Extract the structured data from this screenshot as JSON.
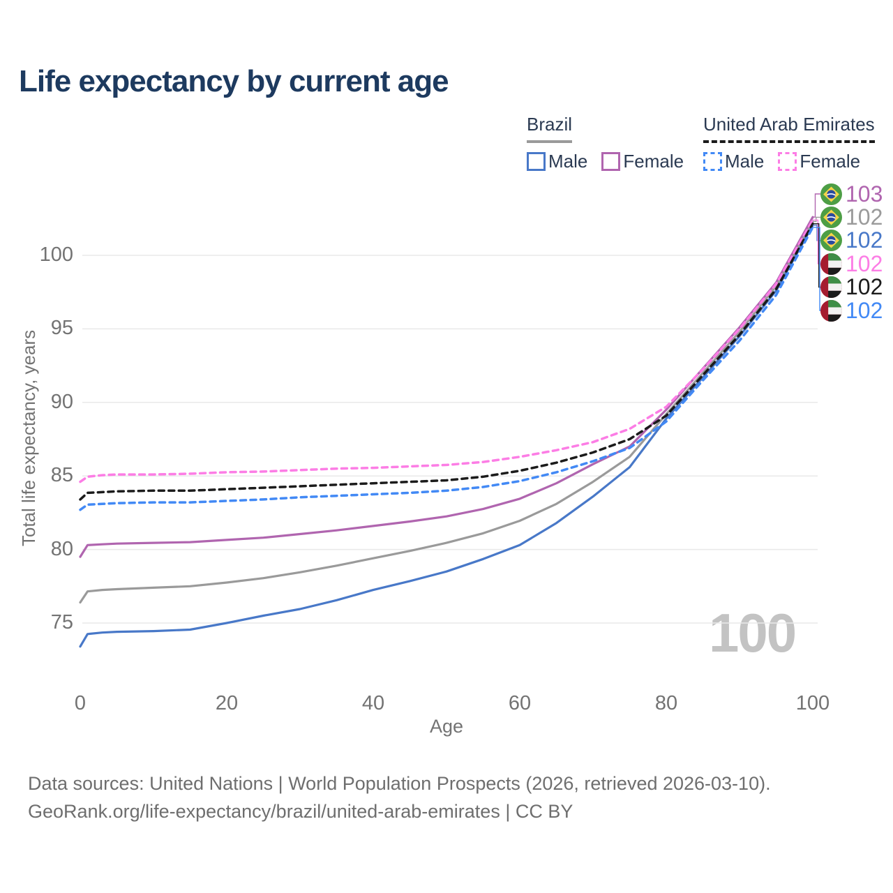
{
  "title": "Life expectancy by current age",
  "watermark": "100",
  "legend": {
    "brazil": {
      "label": "Brazil",
      "underline_color": "#9a9a9a",
      "underline_style": "solid",
      "items": [
        {
          "label": "Male",
          "color": "#4878c8",
          "style": "solid"
        },
        {
          "label": "Female",
          "color": "#b065af",
          "style": "solid"
        }
      ]
    },
    "uae": {
      "label": "United Arab Emirates",
      "underline_color": "#1b1b1b",
      "underline_style": "dashed",
      "items": [
        {
          "label": "Male",
          "color": "#4289f5",
          "style": "dashed"
        },
        {
          "label": "Female",
          "color": "#fc7de5",
          "style": "dashed"
        }
      ]
    }
  },
  "footer": {
    "line1": "Data sources: United Nations | World Population Prospects (2026, retrieved 2026-03-10).",
    "line2": "GeoRank.org/life-expectancy/brazil/united-arab-emirates | CC BY"
  },
  "colors": {
    "title_text": "#1d3a5f",
    "legend_text": "#2b3a52",
    "axis_text": "#737373",
    "gridline": "#e9e9e9",
    "watermark": "#c3c3c3"
  },
  "chart_data": {
    "type": "line",
    "title": "Life expectancy by current age",
    "xlabel": "Age",
    "ylabel": "Total life expectancy, years",
    "xlim": [
      0,
      100
    ],
    "ylim": [
      73,
      103
    ],
    "x_ticks": [
      0,
      20,
      40,
      60,
      80,
      100
    ],
    "y_ticks": [
      75,
      80,
      85,
      90,
      95,
      100
    ],
    "grid": "horizontal-only",
    "legend_position": "top-right",
    "series": [
      {
        "id": "brazil-female",
        "name": "Brazil Female",
        "country": "Brazil",
        "sex": "Female",
        "style": "solid",
        "color": "#b065af",
        "flag": "brazil",
        "end_label": "103",
        "points": [
          [
            0,
            79.5
          ],
          [
            1,
            80.3
          ],
          [
            3,
            80.35
          ],
          [
            5,
            80.4
          ],
          [
            10,
            80.45
          ],
          [
            15,
            80.5
          ],
          [
            20,
            80.65
          ],
          [
            25,
            80.8
          ],
          [
            30,
            81.05
          ],
          [
            35,
            81.3
          ],
          [
            40,
            81.6
          ],
          [
            45,
            81.9
          ],
          [
            50,
            82.25
          ],
          [
            55,
            82.75
          ],
          [
            60,
            83.45
          ],
          [
            65,
            84.5
          ],
          [
            70,
            85.8
          ],
          [
            75,
            87.0
          ],
          [
            80,
            89.5
          ],
          [
            85,
            92.3
          ],
          [
            90,
            95.1
          ],
          [
            95,
            98.15
          ],
          [
            100,
            102.6
          ]
        ]
      },
      {
        "id": "brazil-both",
        "name": "Brazil Both sexes",
        "country": "Brazil",
        "sex": "Both",
        "style": "solid",
        "color": "#9a9a9a",
        "flag": "brazil",
        "end_label": "102",
        "points": [
          [
            0,
            76.4
          ],
          [
            1,
            77.15
          ],
          [
            3,
            77.25
          ],
          [
            5,
            77.3
          ],
          [
            10,
            77.4
          ],
          [
            15,
            77.5
          ],
          [
            20,
            77.75
          ],
          [
            25,
            78.05
          ],
          [
            30,
            78.45
          ],
          [
            35,
            78.9
          ],
          [
            40,
            79.4
          ],
          [
            45,
            79.9
          ],
          [
            50,
            80.45
          ],
          [
            55,
            81.1
          ],
          [
            60,
            81.95
          ],
          [
            65,
            83.1
          ],
          [
            70,
            84.6
          ],
          [
            75,
            86.3
          ],
          [
            80,
            89.2
          ],
          [
            85,
            92.0
          ],
          [
            90,
            94.8
          ],
          [
            95,
            97.9
          ],
          [
            100,
            102.3
          ]
        ]
      },
      {
        "id": "brazil-male",
        "name": "Brazil Male",
        "country": "Brazil",
        "sex": "Male",
        "style": "solid",
        "color": "#4878c8",
        "flag": "brazil",
        "end_label": "102",
        "points": [
          [
            0,
            73.4
          ],
          [
            1,
            74.25
          ],
          [
            3,
            74.35
          ],
          [
            5,
            74.4
          ],
          [
            10,
            74.45
          ],
          [
            15,
            74.55
          ],
          [
            20,
            75.0
          ],
          [
            25,
            75.5
          ],
          [
            30,
            75.95
          ],
          [
            35,
            76.55
          ],
          [
            40,
            77.25
          ],
          [
            45,
            77.85
          ],
          [
            50,
            78.5
          ],
          [
            55,
            79.35
          ],
          [
            60,
            80.3
          ],
          [
            65,
            81.8
          ],
          [
            70,
            83.6
          ],
          [
            75,
            85.6
          ],
          [
            80,
            88.9
          ],
          [
            85,
            91.7
          ],
          [
            90,
            94.5
          ],
          [
            95,
            97.6
          ],
          [
            100,
            102.05
          ]
        ]
      },
      {
        "id": "uae-female",
        "name": "United Arab Emirates Female",
        "country": "United Arab Emirates",
        "sex": "Female",
        "style": "dashed",
        "color": "#fc7de5",
        "flag": "uae",
        "end_label": "102",
        "points": [
          [
            0,
            84.6
          ],
          [
            1,
            84.95
          ],
          [
            3,
            85.05
          ],
          [
            5,
            85.1
          ],
          [
            10,
            85.1
          ],
          [
            15,
            85.15
          ],
          [
            20,
            85.25
          ],
          [
            25,
            85.3
          ],
          [
            30,
            85.4
          ],
          [
            35,
            85.5
          ],
          [
            40,
            85.55
          ],
          [
            45,
            85.65
          ],
          [
            50,
            85.75
          ],
          [
            55,
            85.95
          ],
          [
            60,
            86.3
          ],
          [
            65,
            86.75
          ],
          [
            70,
            87.3
          ],
          [
            75,
            88.2
          ],
          [
            80,
            89.7
          ],
          [
            85,
            92.25
          ],
          [
            90,
            95.0
          ],
          [
            95,
            98.05
          ],
          [
            100,
            102.4
          ]
        ]
      },
      {
        "id": "uae-both",
        "name": "United Arab Emirates Both sexes",
        "country": "United Arab Emirates",
        "sex": "Both",
        "style": "dashed",
        "color": "#1b1b1b",
        "flag": "uae",
        "end_label": "102",
        "points": [
          [
            0,
            83.4
          ],
          [
            1,
            83.85
          ],
          [
            3,
            83.9
          ],
          [
            5,
            83.95
          ],
          [
            10,
            84.0
          ],
          [
            15,
            84.0
          ],
          [
            20,
            84.1
          ],
          [
            25,
            84.2
          ],
          [
            30,
            84.3
          ],
          [
            35,
            84.4
          ],
          [
            40,
            84.5
          ],
          [
            45,
            84.6
          ],
          [
            50,
            84.7
          ],
          [
            55,
            84.95
          ],
          [
            60,
            85.35
          ],
          [
            65,
            85.9
          ],
          [
            70,
            86.6
          ],
          [
            75,
            87.5
          ],
          [
            80,
            89.1
          ],
          [
            85,
            91.85
          ],
          [
            90,
            94.6
          ],
          [
            95,
            97.7
          ],
          [
            100,
            102.15
          ]
        ]
      },
      {
        "id": "uae-male",
        "name": "United Arab Emirates Male",
        "country": "United Arab Emirates",
        "sex": "Male",
        "style": "dashed",
        "color": "#4289f5",
        "flag": "uae",
        "end_label": "102",
        "points": [
          [
            0,
            82.7
          ],
          [
            1,
            83.05
          ],
          [
            3,
            83.1
          ],
          [
            5,
            83.15
          ],
          [
            10,
            83.2
          ],
          [
            15,
            83.2
          ],
          [
            20,
            83.3
          ],
          [
            25,
            83.4
          ],
          [
            30,
            83.55
          ],
          [
            35,
            83.65
          ],
          [
            40,
            83.75
          ],
          [
            45,
            83.85
          ],
          [
            50,
            84.0
          ],
          [
            55,
            84.25
          ],
          [
            60,
            84.65
          ],
          [
            65,
            85.25
          ],
          [
            70,
            86.0
          ],
          [
            75,
            86.9
          ],
          [
            80,
            88.7
          ],
          [
            85,
            91.5
          ],
          [
            90,
            94.2
          ],
          [
            95,
            97.3
          ],
          [
            100,
            101.9
          ]
        ]
      }
    ]
  }
}
